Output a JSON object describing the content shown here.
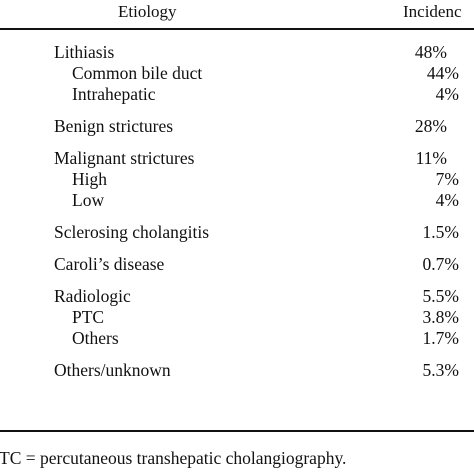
{
  "header": {
    "etiology": "Etiology",
    "incidence": "Incidenc"
  },
  "groups": [
    {
      "main": {
        "label": "Lithiasis",
        "value": "48%"
      },
      "subs": [
        {
          "label": "Common bile duct",
          "value": "44%"
        },
        {
          "label": "Intrahepatic",
          "value": "4%"
        }
      ]
    },
    {
      "main": {
        "label": "Benign strictures",
        "value": "28%"
      },
      "subs": []
    },
    {
      "main": {
        "label": "Malignant strictures",
        "value": "11%"
      },
      "subs": [
        {
          "label": "High",
          "value": "7%"
        },
        {
          "label": "Low",
          "value": "4%"
        }
      ]
    },
    {
      "main": {
        "label": "Sclerosing cholangitis",
        "value": "1.5%"
      },
      "subs": []
    },
    {
      "main": {
        "label": "Caroli’s disease",
        "value": "0.7%"
      },
      "subs": []
    },
    {
      "main": {
        "label": "Radiologic",
        "value": "5.5%"
      },
      "subs": [
        {
          "label": "PTC",
          "value": "3.8%"
        },
        {
          "label": "Others",
          "value": "1.7%"
        }
      ]
    },
    {
      "main": {
        "label": "Others/unknown",
        "value": "5.3%"
      },
      "subs": []
    }
  ],
  "footnote": "TC = percutaneous transhepatic cholangiography."
}
